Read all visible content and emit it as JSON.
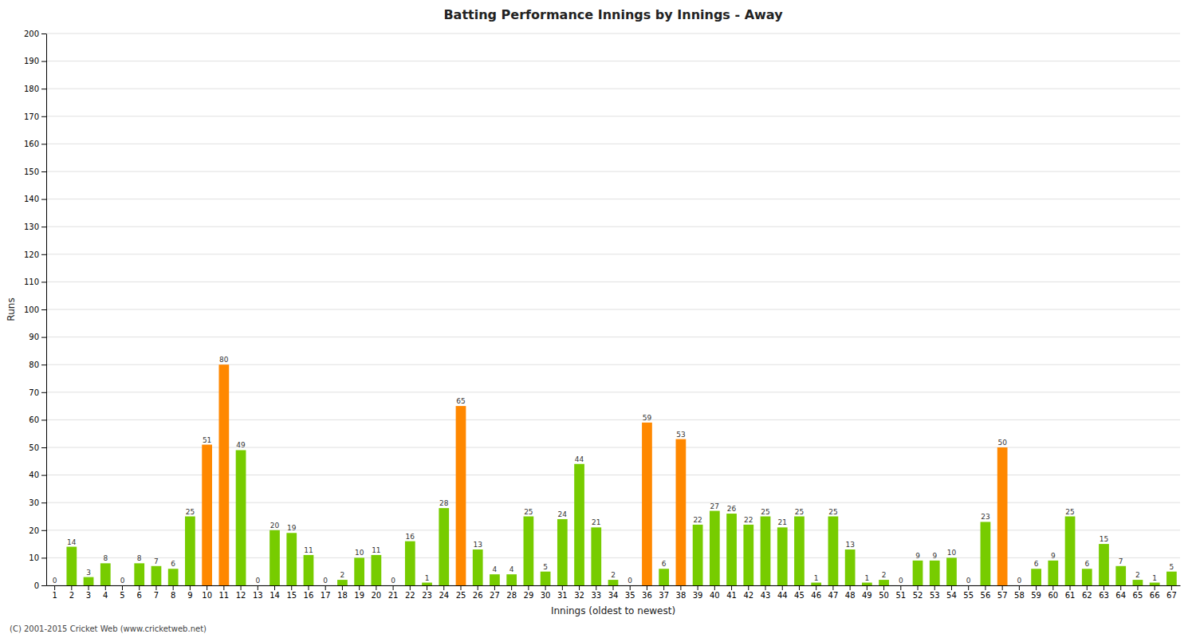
{
  "chart_data": {
    "type": "bar",
    "title": "Batting Performance Innings by Innings - Away",
    "xlabel": "Innings (oldest to newest)",
    "ylabel": "Runs",
    "annotations": [
      "(C) 2001-2015 Cricket Web (www.cricketweb.net)"
    ],
    "categories": [
      "1",
      "2",
      "3",
      "4",
      "5",
      "6",
      "7",
      "8",
      "9",
      "10",
      "11",
      "12",
      "13",
      "14",
      "15",
      "16",
      "17",
      "18",
      "19",
      "20",
      "21",
      "22",
      "23",
      "24",
      "25",
      "26",
      "27",
      "28",
      "29",
      "30",
      "31",
      "32",
      "33",
      "34",
      "35",
      "36",
      "37",
      "38",
      "39",
      "40",
      "41",
      "42",
      "43",
      "44",
      "45",
      "46",
      "47",
      "48",
      "49",
      "50",
      "51",
      "52",
      "53",
      "54",
      "55",
      "56",
      "57",
      "58",
      "59",
      "60",
      "61",
      "62",
      "63",
      "64",
      "65",
      "66",
      "67"
    ],
    "values": [
      0,
      14,
      3,
      8,
      0,
      8,
      7,
      6,
      25,
      51,
      80,
      49,
      0,
      20,
      19,
      11,
      0,
      2,
      10,
      11,
      0,
      16,
      1,
      28,
      65,
      13,
      4,
      4,
      25,
      5,
      24,
      44,
      21,
      2,
      0,
      59,
      6,
      53,
      22,
      27,
      26,
      22,
      25,
      21,
      25,
      1,
      25,
      13,
      1,
      2,
      0,
      9,
      9,
      10,
      0,
      23,
      50,
      0,
      6,
      9,
      25,
      6,
      15,
      7,
      2,
      1,
      5
    ],
    "colors": [
      "#77cc00",
      "#77cc00",
      "#77cc00",
      "#77cc00",
      "#77cc00",
      "#77cc00",
      "#77cc00",
      "#77cc00",
      "#77cc00",
      "#ff8800",
      "#ff8800",
      "#77cc00",
      "#77cc00",
      "#77cc00",
      "#77cc00",
      "#77cc00",
      "#77cc00",
      "#77cc00",
      "#77cc00",
      "#77cc00",
      "#77cc00",
      "#77cc00",
      "#77cc00",
      "#77cc00",
      "#ff8800",
      "#77cc00",
      "#77cc00",
      "#77cc00",
      "#77cc00",
      "#77cc00",
      "#77cc00",
      "#77cc00",
      "#77cc00",
      "#77cc00",
      "#77cc00",
      "#ff8800",
      "#77cc00",
      "#ff8800",
      "#77cc00",
      "#77cc00",
      "#77cc00",
      "#77cc00",
      "#77cc00",
      "#77cc00",
      "#77cc00",
      "#77cc00",
      "#77cc00",
      "#77cc00",
      "#77cc00",
      "#77cc00",
      "#77cc00",
      "#77cc00",
      "#77cc00",
      "#77cc00",
      "#77cc00",
      "#77cc00",
      "#ff8800",
      "#77cc00",
      "#77cc00",
      "#77cc00",
      "#77cc00",
      "#77cc00",
      "#77cc00",
      "#77cc00",
      "#77cc00",
      "#77cc00",
      "#77cc00"
    ],
    "ylim": [
      0,
      200
    ],
    "yticks": [
      0,
      10,
      20,
      30,
      40,
      50,
      60,
      70,
      80,
      90,
      100,
      110,
      120,
      130,
      140,
      150,
      160,
      170,
      180,
      190,
      200
    ],
    "grid": true,
    "data_labels": true
  }
}
